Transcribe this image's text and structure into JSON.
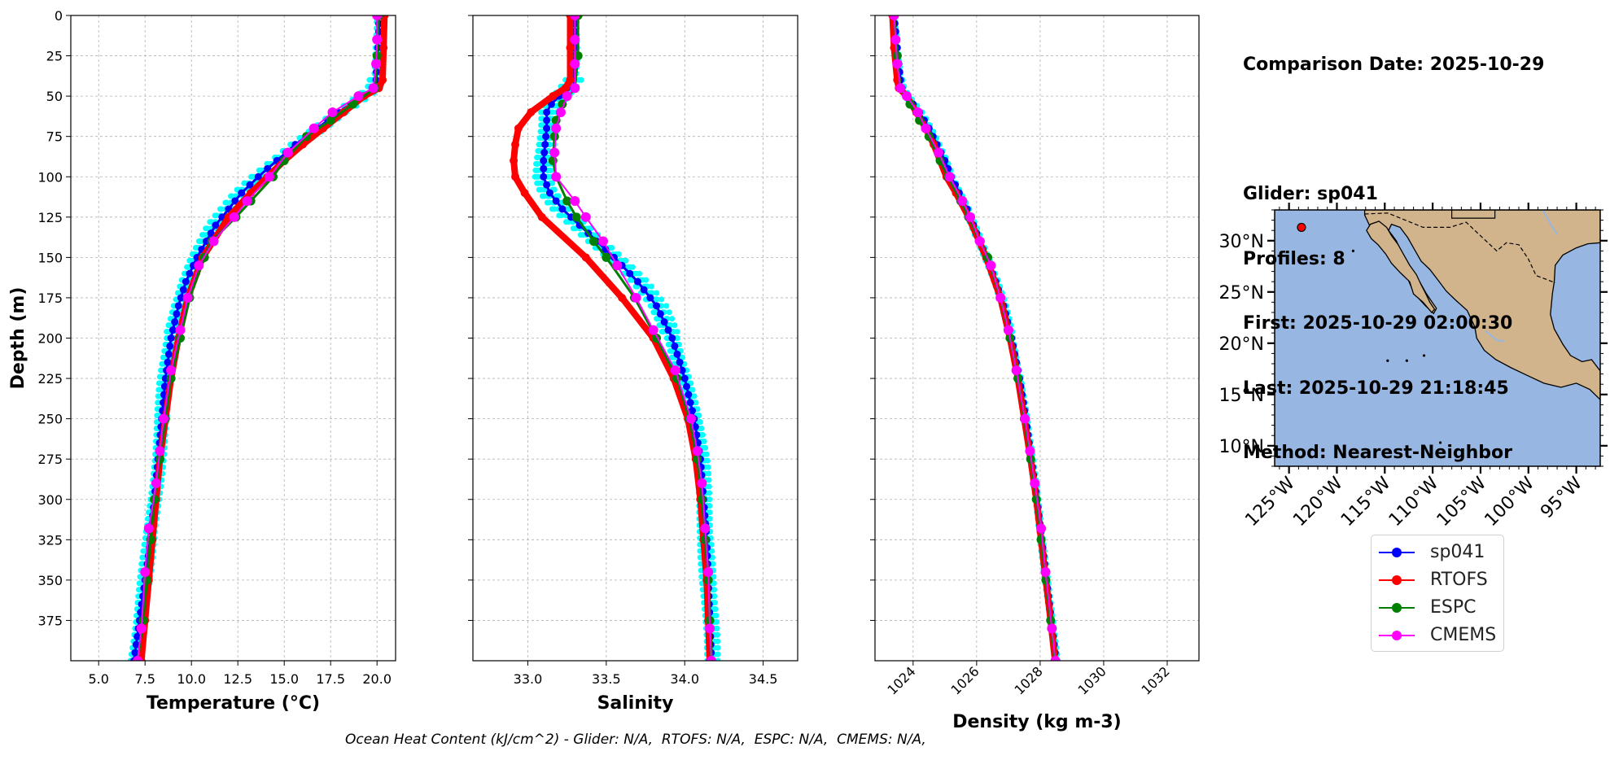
{
  "chart_data": [
    {
      "type": "line",
      "xlabel": "Temperature (°C)",
      "ylabel": "Depth (m)",
      "xlim": [
        3.5,
        21.0
      ],
      "ylim": [
        400,
        0
      ],
      "xticks": [
        "5.0",
        "7.5",
        "10.0",
        "12.5",
        "15.0",
        "17.5",
        "20.0"
      ],
      "yticks": [
        "0",
        "25",
        "50",
        "75",
        "100",
        "125",
        "150",
        "175",
        "200",
        "225",
        "250",
        "275",
        "300",
        "325",
        "350",
        "375"
      ],
      "grid": true,
      "series": [
        {
          "name": "sp041",
          "depth": [
            0,
            10,
            20,
            30,
            40,
            45,
            50,
            55,
            60,
            70,
            80,
            90,
            100,
            110,
            120,
            130,
            140,
            150,
            165,
            180,
            200,
            225,
            250,
            275,
            300,
            325,
            350,
            375,
            400
          ],
          "values": [
            20.1,
            20.1,
            20.05,
            20.0,
            19.95,
            19.8,
            19.2,
            18.6,
            17.9,
            16.8,
            15.6,
            14.6,
            13.6,
            12.7,
            12.0,
            11.3,
            10.8,
            10.3,
            9.7,
            9.3,
            8.9,
            8.6,
            8.4,
            8.2,
            8.0,
            7.8,
            7.5,
            7.2,
            6.9
          ]
        },
        {
          "name": "RTOFS",
          "depth": [
            0,
            20,
            40,
            45,
            50,
            60,
            70,
            80,
            90,
            100,
            110,
            125,
            150,
            175,
            200,
            225,
            250,
            275,
            300,
            325,
            350,
            375,
            400
          ],
          "values": [
            20.4,
            20.35,
            20.3,
            20.1,
            19.3,
            18.2,
            17.1,
            16.0,
            15.0,
            14.1,
            13.2,
            12.0,
            10.6,
            9.8,
            9.3,
            8.9,
            8.6,
            8.3,
            8.1,
            7.9,
            7.7,
            7.5,
            7.3
          ]
        },
        {
          "name": "ESPC",
          "depth": [
            0,
            25,
            45,
            55,
            65,
            75,
            90,
            100,
            115,
            125,
            140,
            150,
            175,
            200,
            225,
            250,
            275,
            300,
            325,
            350,
            375,
            400
          ],
          "values": [
            20.1,
            20.0,
            19.9,
            18.7,
            17.5,
            16.2,
            15.0,
            14.4,
            13.2,
            12.4,
            11.1,
            10.7,
            9.9,
            9.4,
            8.9,
            8.6,
            8.3,
            8.0,
            7.8,
            7.6,
            7.4,
            7.1
          ]
        },
        {
          "name": "CMEMS",
          "depth": [
            0,
            15,
            30,
            45,
            50,
            60,
            70,
            85,
            100,
            115,
            125,
            140,
            155,
            175,
            195,
            220,
            250,
            270,
            290,
            318,
            345,
            380,
            400
          ],
          "values": [
            20.0,
            20.0,
            19.95,
            19.8,
            19.0,
            17.6,
            16.6,
            15.2,
            14.2,
            13.0,
            12.3,
            11.2,
            10.4,
            9.8,
            9.4,
            8.9,
            8.5,
            8.3,
            8.1,
            7.7,
            7.5,
            7.3,
            7.1
          ]
        }
      ]
    },
    {
      "type": "line",
      "xlabel": "Salinity",
      "xlim": [
        32.65,
        34.72
      ],
      "ylim": [
        400,
        0
      ],
      "xticks": [
        "33.0",
        "33.5",
        "34.0",
        "34.5"
      ],
      "grid": true,
      "series": [
        {
          "name": "sp041",
          "depth": [
            0,
            10,
            20,
            30,
            40,
            45,
            50,
            55,
            60,
            70,
            80,
            90,
            100,
            110,
            120,
            130,
            140,
            150,
            165,
            180,
            200,
            225,
            250,
            275,
            300,
            325,
            350,
            375,
            400
          ],
          "values": [
            33.3,
            33.3,
            33.3,
            33.3,
            33.29,
            33.25,
            33.2,
            33.15,
            33.12,
            33.12,
            33.11,
            33.1,
            33.1,
            33.14,
            33.22,
            33.33,
            33.44,
            33.55,
            33.7,
            33.82,
            33.92,
            34.0,
            34.06,
            34.1,
            34.12,
            34.14,
            34.15,
            34.16,
            34.17
          ]
        },
        {
          "name": "RTOFS",
          "depth": [
            0,
            20,
            40,
            45,
            50,
            60,
            70,
            80,
            90,
            100,
            110,
            125,
            150,
            175,
            200,
            225,
            250,
            275,
            300,
            325,
            350,
            375,
            400
          ],
          "values": [
            33.27,
            33.27,
            33.27,
            33.24,
            33.16,
            33.02,
            32.94,
            32.92,
            32.91,
            32.92,
            32.98,
            33.09,
            33.37,
            33.6,
            33.8,
            33.93,
            34.02,
            34.07,
            34.1,
            34.12,
            34.14,
            34.15,
            34.16
          ]
        },
        {
          "name": "ESPC",
          "depth": [
            0,
            25,
            45,
            55,
            65,
            75,
            90,
            100,
            115,
            125,
            140,
            150,
            175,
            200,
            225,
            250,
            275,
            300,
            325,
            350,
            375,
            400
          ],
          "values": [
            33.32,
            33.32,
            33.3,
            33.22,
            33.18,
            33.17,
            33.16,
            33.18,
            33.25,
            33.31,
            33.42,
            33.5,
            33.68,
            33.82,
            33.95,
            34.03,
            34.08,
            34.11,
            34.13,
            34.15,
            34.16,
            34.17
          ]
        },
        {
          "name": "CMEMS",
          "depth": [
            0,
            15,
            30,
            45,
            50,
            60,
            70,
            85,
            100,
            115,
            125,
            140,
            155,
            175,
            195,
            220,
            250,
            270,
            290,
            318,
            345,
            380,
            400
          ],
          "values": [
            33.3,
            33.3,
            33.3,
            33.3,
            33.25,
            33.21,
            33.18,
            33.17,
            33.18,
            33.3,
            33.37,
            33.48,
            33.57,
            33.69,
            33.8,
            33.94,
            34.04,
            34.08,
            34.11,
            34.13,
            34.15,
            34.16,
            34.17
          ]
        }
      ]
    },
    {
      "type": "line",
      "xlabel": "Density (kg m-3)",
      "xlim": [
        1022.8,
        1033.0
      ],
      "ylim": [
        400,
        0
      ],
      "xticks": [
        "1024",
        "1026",
        "1028",
        "1030",
        "1032"
      ],
      "grid": true,
      "series": [
        {
          "name": "sp041",
          "depth": [
            0,
            10,
            20,
            30,
            40,
            45,
            50,
            55,
            60,
            70,
            80,
            90,
            100,
            110,
            120,
            130,
            140,
            150,
            165,
            180,
            200,
            225,
            250,
            275,
            300,
            325,
            350,
            375,
            400
          ],
          "values": [
            1023.4,
            1023.45,
            1023.5,
            1023.55,
            1023.6,
            1023.65,
            1023.8,
            1024.0,
            1024.2,
            1024.5,
            1024.75,
            1025.0,
            1025.2,
            1025.45,
            1025.7,
            1025.9,
            1026.1,
            1026.3,
            1026.6,
            1026.85,
            1027.1,
            1027.35,
            1027.55,
            1027.72,
            1027.9,
            1028.05,
            1028.2,
            1028.35,
            1028.5
          ]
        },
        {
          "name": "RTOFS",
          "depth": [
            0,
            20,
            40,
            45,
            50,
            60,
            70,
            80,
            90,
            100,
            110,
            125,
            150,
            175,
            200,
            225,
            250,
            275,
            300,
            325,
            350,
            375,
            400
          ],
          "values": [
            1023.35,
            1023.4,
            1023.5,
            1023.55,
            1023.8,
            1024.1,
            1024.4,
            1024.65,
            1024.85,
            1025.05,
            1025.35,
            1025.75,
            1026.3,
            1026.75,
            1027.05,
            1027.3,
            1027.5,
            1027.7,
            1027.88,
            1028.03,
            1028.18,
            1028.33,
            1028.47
          ]
        },
        {
          "name": "ESPC",
          "depth": [
            0,
            25,
            45,
            55,
            65,
            75,
            90,
            100,
            115,
            125,
            140,
            150,
            175,
            200,
            225,
            250,
            275,
            300,
            325,
            350,
            375,
            400
          ],
          "values": [
            1023.4,
            1023.5,
            1023.6,
            1023.9,
            1024.2,
            1024.5,
            1024.85,
            1025.1,
            1025.5,
            1025.75,
            1026.1,
            1026.35,
            1026.75,
            1027.05,
            1027.3,
            1027.5,
            1027.7,
            1027.88,
            1028.03,
            1028.18,
            1028.33,
            1028.47
          ]
        },
        {
          "name": "CMEMS",
          "depth": [
            0,
            15,
            30,
            45,
            50,
            60,
            70,
            85,
            100,
            115,
            125,
            140,
            155,
            175,
            195,
            220,
            250,
            270,
            290,
            318,
            345,
            380,
            400
          ],
          "values": [
            1023.4,
            1023.45,
            1023.5,
            1023.6,
            1023.8,
            1024.15,
            1024.4,
            1024.8,
            1025.15,
            1025.55,
            1025.8,
            1026.1,
            1026.45,
            1026.75,
            1027.0,
            1027.25,
            1027.52,
            1027.68,
            1027.83,
            1028.03,
            1028.17,
            1028.37,
            1028.48
          ]
        }
      ]
    }
  ],
  "map": {
    "lat_ticks": [
      "10°N",
      "15°N",
      "20°N",
      "25°N",
      "30°N"
    ],
    "lon_ticks": [
      "125°W",
      "120°W",
      "115°W",
      "110°W",
      "105°W",
      "100°W",
      "95°W"
    ],
    "ocean_color": "#97b6e1",
    "land_color": "#d2b48c",
    "glider_lon": -123.7,
    "glider_lat": 31.3
  },
  "info": {
    "comparison_date": "Comparison Date: 2025-10-29",
    "glider": "Glider: sp041",
    "profiles": "Profiles: 8",
    "first": "First: 2025-10-29 02:00:30",
    "last": "Last: 2025-10-29 21:18:45",
    "method": "Method: Nearest-Neighbor"
  },
  "legend": [
    {
      "label": "sp041",
      "color": "#0000ff"
    },
    {
      "label": "RTOFS",
      "color": "#ff0000"
    },
    {
      "label": "ESPC",
      "color": "#008000"
    },
    {
      "label": "CMEMS",
      "color": "#ff00ff"
    }
  ],
  "footer": "Ocean Heat Content (kJ/cm^2) - Glider: N/A,  RTOFS: N/A,  ESPC: N/A,  CMEMS: N/A,",
  "colors": {
    "sp041": "#0000ff",
    "RTOFS": "#ff0000",
    "ESPC": "#008000",
    "CMEMS": "#ff00ff",
    "raw": "#00ffff"
  }
}
